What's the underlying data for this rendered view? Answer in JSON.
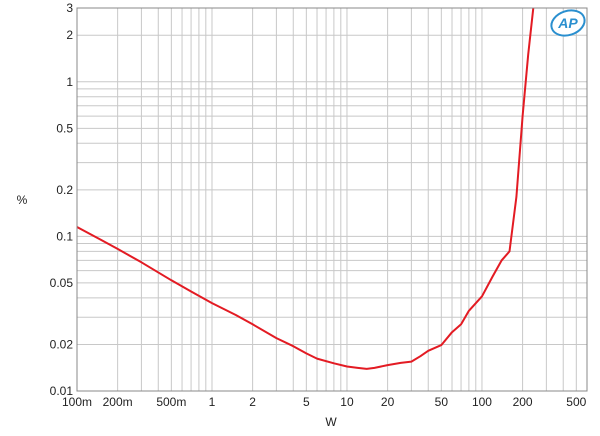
{
  "logo_text": "AP",
  "chart_data": {
    "type": "line",
    "title": "",
    "xlabel": "W",
    "ylabel": "%",
    "xscale": "log",
    "yscale": "log",
    "xlim": [
      0.1,
      600
    ],
    "ylim": [
      0.01,
      3
    ],
    "grid": true,
    "x_ticks": [
      {
        "value": 0.1,
        "label": "100m"
      },
      {
        "value": 0.2,
        "label": "200m"
      },
      {
        "value": 0.5,
        "label": "500m"
      },
      {
        "value": 1,
        "label": "1"
      },
      {
        "value": 2,
        "label": "2"
      },
      {
        "value": 5,
        "label": "5"
      },
      {
        "value": 10,
        "label": "10"
      },
      {
        "value": 20,
        "label": "20"
      },
      {
        "value": 50,
        "label": "50"
      },
      {
        "value": 100,
        "label": "100"
      },
      {
        "value": 200,
        "label": "200"
      },
      {
        "value": 500,
        "label": "500"
      }
    ],
    "y_ticks": [
      {
        "value": 0.01,
        "label": "0.01"
      },
      {
        "value": 0.02,
        "label": "0.02"
      },
      {
        "value": 0.05,
        "label": "0.05"
      },
      {
        "value": 0.1,
        "label": "0.1"
      },
      {
        "value": 0.2,
        "label": "0.2"
      },
      {
        "value": 0.5,
        "label": "0.5"
      },
      {
        "value": 1,
        "label": "1"
      },
      {
        "value": 2,
        "label": "2"
      },
      {
        "value": 3,
        "label": "3"
      }
    ],
    "series": [
      {
        "color": "#e31b23",
        "points": [
          [
            0.1,
            0.115
          ],
          [
            0.15,
            0.095
          ],
          [
            0.2,
            0.083
          ],
          [
            0.3,
            0.068
          ],
          [
            0.5,
            0.052
          ],
          [
            0.7,
            0.044
          ],
          [
            1,
            0.037
          ],
          [
            1.5,
            0.031
          ],
          [
            2,
            0.027
          ],
          [
            3,
            0.022
          ],
          [
            4,
            0.0195
          ],
          [
            5,
            0.0175
          ],
          [
            6,
            0.0162
          ],
          [
            8,
            0.0151
          ],
          [
            10,
            0.0144
          ],
          [
            12,
            0.0141
          ],
          [
            14,
            0.0139
          ],
          [
            16,
            0.0141
          ],
          [
            20,
            0.0147
          ],
          [
            25,
            0.0152
          ],
          [
            30,
            0.0155
          ],
          [
            35,
            0.0168
          ],
          [
            40,
            0.0182
          ],
          [
            50,
            0.0198
          ],
          [
            60,
            0.024
          ],
          [
            70,
            0.027
          ],
          [
            80,
            0.033
          ],
          [
            100,
            0.041
          ],
          [
            120,
            0.055
          ],
          [
            140,
            0.07
          ],
          [
            160,
            0.08
          ],
          [
            180,
            0.18
          ],
          [
            200,
            0.6
          ],
          [
            220,
            1.5
          ],
          [
            240,
            3.0
          ]
        ]
      }
    ]
  }
}
